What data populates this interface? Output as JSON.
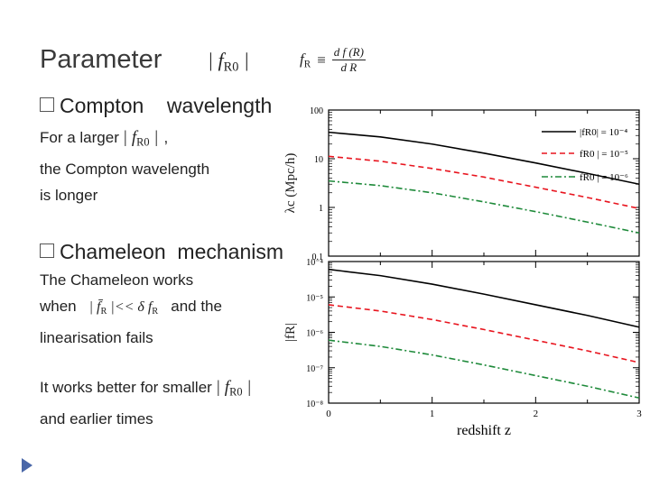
{
  "slide": {
    "title": "Parameter",
    "title_math": "| f",
    "title_math_sub": "R0",
    "title_math_end": " |",
    "definition": {
      "lhs": "f",
      "lhs_sub": "R",
      "equiv": "≡",
      "numerator": "d f (R)",
      "denominator": "d R"
    },
    "bullet1": {
      "heading": "Compton    wavelength",
      "line1_pre": "For a  larger",
      "line1_math": "| f",
      "line1_math_sub": "R0",
      "line1_math_end": " |",
      "line1_post": ",",
      "line2": "the Compton wavelength",
      "line3": "is longer"
    },
    "bullet2": {
      "heading": "Chameleon  mechanism",
      "line1": "The Chameleon works",
      "line2_pre": "when",
      "line2_math": "| f̄",
      "line2_math_sub": "R",
      "line2_math_mid": " |<< δ f",
      "line2_math_sub2": "R",
      "line2_post": "and the",
      "line3": "linearisation fails"
    },
    "footer": {
      "line1": "It works better for smaller",
      "line1_math": "| f",
      "line1_math_sub": "R0",
      "line1_math_end": " |",
      "line2": "and earlier times"
    }
  },
  "chart_data": [
    {
      "type": "line",
      "panel": "top",
      "ylabel": "λc (Mpc/h)",
      "yscale": "log",
      "ylim": [
        0.1,
        100
      ],
      "yticks": [
        "100",
        "10",
        "1",
        "0.1"
      ],
      "xlim": [
        0,
        3
      ],
      "legend_position": "top-right",
      "legend_labels": [
        "|fR0| = 10⁻⁴",
        "fR0 | = 10⁻⁵",
        "fR0 | = 10⁻⁶"
      ],
      "series": [
        {
          "color": "#000000",
          "style": "solid",
          "x": [
            0,
            0.5,
            1,
            1.5,
            2,
            2.5,
            3
          ],
          "y": [
            35,
            28,
            20,
            13,
            8.2,
            5,
            3
          ]
        },
        {
          "color": "#e8141e",
          "style": "dashed",
          "x": [
            0,
            0.5,
            1,
            1.5,
            2,
            2.5,
            3
          ],
          "y": [
            11.2,
            8.9,
            6.3,
            4.2,
            2.6,
            1.6,
            0.95
          ]
        },
        {
          "color": "#1e8a3a",
          "style": "dashdot",
          "x": [
            0,
            0.5,
            1,
            1.5,
            2,
            2.5,
            3
          ],
          "y": [
            3.5,
            2.8,
            2,
            1.3,
            0.82,
            0.5,
            0.3
          ]
        }
      ]
    },
    {
      "type": "line",
      "panel": "bottom",
      "ylabel": "|fR|",
      "yscale": "log",
      "ylim": [
        1e-08,
        0.0001
      ],
      "yticks": [
        "10⁻⁴",
        "10⁻⁵",
        "10⁻⁶",
        "10⁻⁷",
        "10⁻⁸"
      ],
      "xlabel": "redshift z",
      "xlim": [
        0,
        3
      ],
      "xticks": [
        "0",
        "1",
        "2",
        "3"
      ],
      "series": [
        {
          "color": "#000000",
          "style": "solid",
          "x": [
            0,
            0.5,
            1,
            1.5,
            2,
            2.5,
            3
          ],
          "y": [
            6e-05,
            4e-05,
            2.3e-05,
            1.2e-05,
            6e-06,
            3e-06,
            1.4e-06
          ]
        },
        {
          "color": "#e8141e",
          "style": "dashed",
          "x": [
            0,
            0.5,
            1,
            1.5,
            2,
            2.5,
            3
          ],
          "y": [
            6e-06,
            4e-06,
            2.3e-06,
            1.2e-06,
            6e-07,
            3e-07,
            1.4e-07
          ]
        },
        {
          "color": "#1e8a3a",
          "style": "dashdot",
          "x": [
            0,
            0.5,
            1,
            1.5,
            2,
            2.5,
            3
          ],
          "y": [
            6e-07,
            4e-07,
            2.3e-07,
            1.2e-07,
            6e-08,
            3e-08,
            1.4e-08
          ]
        }
      ]
    }
  ]
}
